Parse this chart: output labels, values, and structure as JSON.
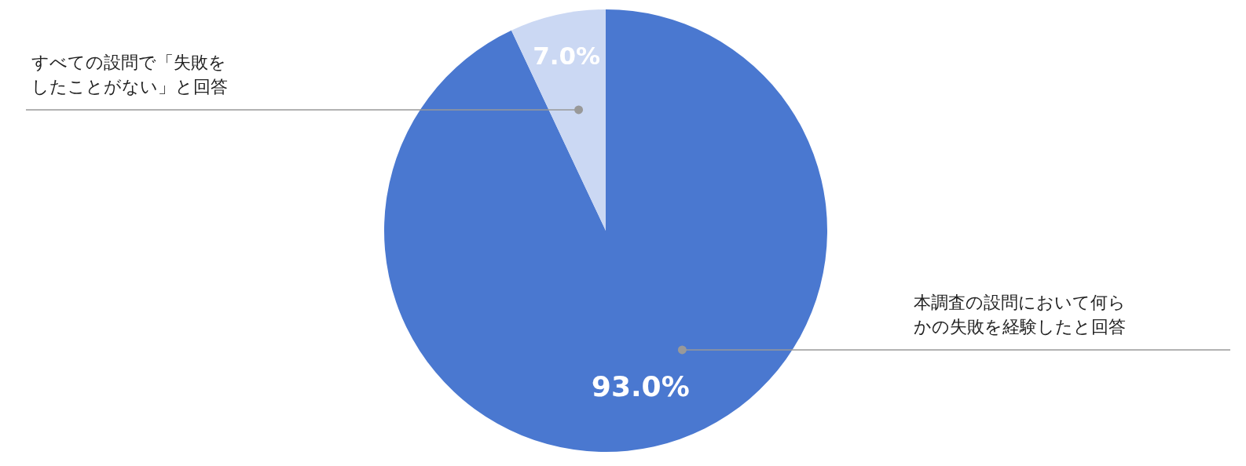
{
  "chart_data": {
    "type": "pie",
    "categories": [
      "本調査の設問において何らかの失敗を経験したと回答",
      "すべての設問で「失敗をしたことがない」と回答"
    ],
    "values": [
      93.0,
      7.0
    ],
    "colors": [
      "#4a78d0",
      "#cbd8f3"
    ],
    "value_labels": [
      "93.0%",
      "7.0%"
    ],
    "legend": false
  }
}
